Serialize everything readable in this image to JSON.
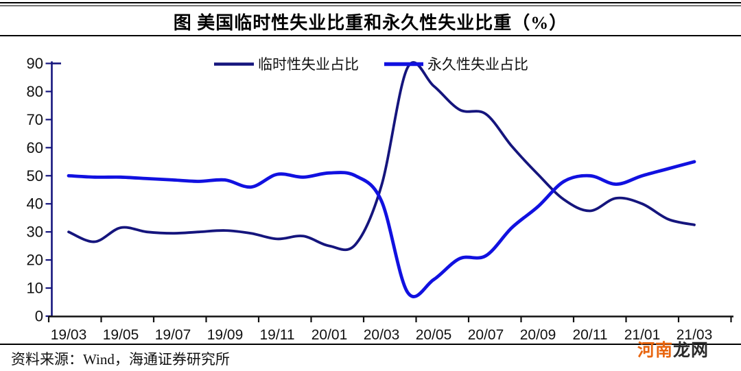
{
  "title": "图  美国临时性失业比重和永久性失业比重（%）",
  "source": "资料来源：Wind，海通证券研究所",
  "watermark": {
    "text_primary": "河南",
    "text_secondary": "龙网",
    "primary_color": "#e8650f",
    "secondary_color": "#2b2b2b"
  },
  "chart_data": {
    "type": "line",
    "title": "图 美国临时性失业比重和永久性失业比重（%）",
    "x": [
      "19/03",
      "19/04",
      "19/05",
      "19/06",
      "19/07",
      "19/08",
      "19/09",
      "19/10",
      "19/11",
      "19/12",
      "20/01",
      "20/02",
      "20/03",
      "20/04",
      "20/05",
      "20/06",
      "20/07",
      "20/08",
      "20/09",
      "20/10",
      "20/11",
      "20/12",
      "21/01",
      "21/02",
      "21/03"
    ],
    "x_tick_labels": [
      "19/03",
      "19/05",
      "19/07",
      "19/09",
      "19/11",
      "20/01",
      "20/03",
      "20/05",
      "20/07",
      "20/09",
      "20/11",
      "21/01",
      "21/03"
    ],
    "ylim": [
      0,
      90
    ],
    "yticks": [
      0,
      10,
      20,
      30,
      40,
      50,
      60,
      70,
      80,
      90
    ],
    "grid": false,
    "legend_position": "top-center",
    "axis_color": "#15157d",
    "x_axis_color": "#111111",
    "tick_label_color": "#111111",
    "series": [
      {
        "name": "临时性失业占比",
        "color": "#15157d",
        "line_width": 3.8,
        "values": [
          30,
          26.5,
          31.5,
          30,
          29.5,
          30,
          30.5,
          29.5,
          27.5,
          28.5,
          25,
          25.5,
          46.5,
          88.5,
          82,
          73.5,
          72,
          60.5,
          50.5,
          41.5,
          37.5,
          42,
          40,
          34.5,
          32.5
        ]
      },
      {
        "name": "永久性失业占比",
        "color": "#1111e0",
        "line_width": 4.8,
        "values": [
          50,
          49.5,
          49.5,
          49,
          48.5,
          48,
          48.5,
          46,
          50.5,
          49.5,
          51,
          50,
          41,
          8.5,
          13,
          20.5,
          21.5,
          31.5,
          39,
          48,
          50,
          47,
          50,
          52.5,
          55
        ]
      }
    ]
  }
}
